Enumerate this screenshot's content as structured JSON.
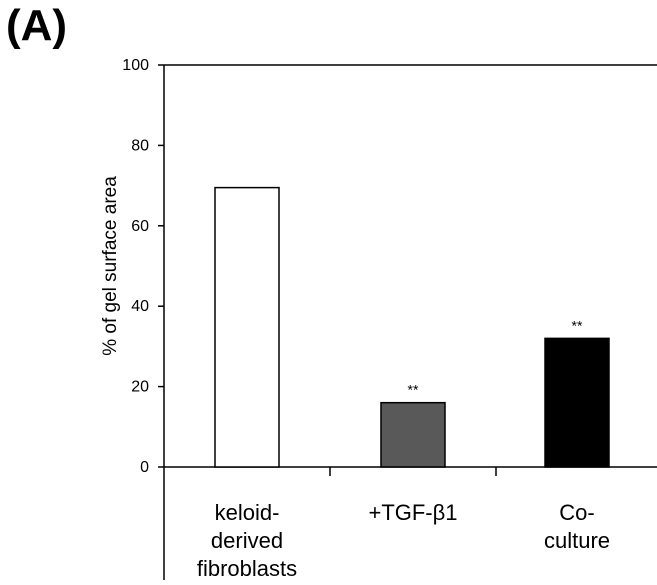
{
  "panel_label": "(A)",
  "chart_data": {
    "type": "bar",
    "categories": [
      [
        "keloid-",
        "derived",
        "fibroblasts"
      ],
      [
        "+TGF-β1"
      ],
      [
        "Co-",
        "culture"
      ]
    ],
    "values": [
      69.5,
      16,
      32
    ],
    "bar_colors": [
      "#ffffff",
      "#595959",
      "#000000"
    ],
    "annotations": [
      "",
      "**",
      "**"
    ],
    "ylabel": "% of gel surface area",
    "ylim": [
      0,
      100
    ],
    "yticks": [
      0,
      20,
      40,
      60,
      80,
      100
    ]
  }
}
